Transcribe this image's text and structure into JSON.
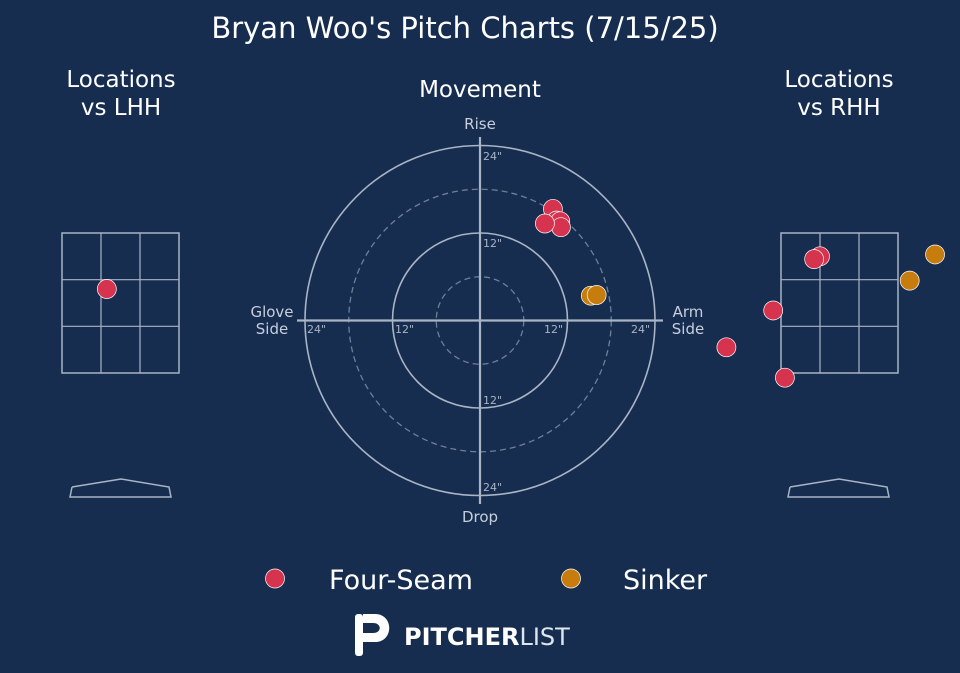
{
  "colors": {
    "background": "#162d50",
    "text": "#ffffff",
    "muted_text": "#c7cfdb",
    "grid": "#a9b4c4",
    "four_seam": "#d6334f",
    "sinker": "#c77d0e"
  },
  "title": "Bryan Woo's Pitch Charts (7/15/25)",
  "panels": {
    "lhh": {
      "title_line1": "Locations",
      "title_line2": "vs LHH"
    },
    "movement": {
      "title": "Movement",
      "rise_label": "Rise",
      "drop_label": "Drop",
      "glove_line1": "Glove",
      "glove_line2": "Side",
      "arm_line1": "Arm",
      "arm_line2": "Side",
      "ring_labels": {
        "r12": "12\"",
        "r24": "24\""
      }
    },
    "rhh": {
      "title_line1": "Locations",
      "title_line2": "vs RHH"
    }
  },
  "legend": {
    "four_seam": "Four-Seam",
    "sinker": "Sinker"
  },
  "brand": {
    "name_bold": "PITCHER",
    "name_light": "LIST"
  },
  "chart_data": [
    {
      "type": "scatter",
      "id": "locations_lhh",
      "title": "Locations vs LHH",
      "zone_units": "strike zone thirds; x 0-3 left to right, y 0-3 top to bottom",
      "points": [
        {
          "pitch": "Four-Seam",
          "x": 1.15,
          "y": 1.2
        }
      ]
    },
    {
      "type": "scatter",
      "id": "movement",
      "title": "Movement",
      "units": "inches",
      "axes": {
        "horizontal": "Glove Side / Arm Side",
        "vertical": "Rise / Drop"
      },
      "rings": [
        6,
        12,
        18,
        24
      ],
      "points": [
        {
          "pitch": "Four-Seam",
          "x": 10.0,
          "y": 15.3
        },
        {
          "pitch": "Four-Seam",
          "x": 10.5,
          "y": 13.7
        },
        {
          "pitch": "Four-Seam",
          "x": 11.0,
          "y": 13.6
        },
        {
          "pitch": "Four-Seam",
          "x": 11.1,
          "y": 12.8
        },
        {
          "pitch": "Four-Seam",
          "x": 8.9,
          "y": 13.3
        },
        {
          "pitch": "Sinker",
          "x": 15.2,
          "y": 3.4
        },
        {
          "pitch": "Sinker",
          "x": 16.0,
          "y": 3.5
        }
      ]
    },
    {
      "type": "scatter",
      "id": "locations_rhh",
      "title": "Locations vs RHH",
      "zone_units": "strike zone thirds; x 0-3 left to right, y 0-3 top to bottom",
      "points": [
        {
          "pitch": "Four-Seam",
          "x": 1.0,
          "y": 0.5
        },
        {
          "pitch": "Four-Seam",
          "x": 0.85,
          "y": 0.56
        },
        {
          "pitch": "Four-Seam",
          "x": -0.2,
          "y": 1.66
        },
        {
          "pitch": "Four-Seam",
          "x": -1.4,
          "y": 2.45
        },
        {
          "pitch": "Four-Seam",
          "x": 0.1,
          "y": 3.1
        },
        {
          "pitch": "Sinker",
          "x": 3.3,
          "y": 1.02
        },
        {
          "pitch": "Sinker",
          "x": 3.95,
          "y": 0.46
        }
      ]
    }
  ]
}
